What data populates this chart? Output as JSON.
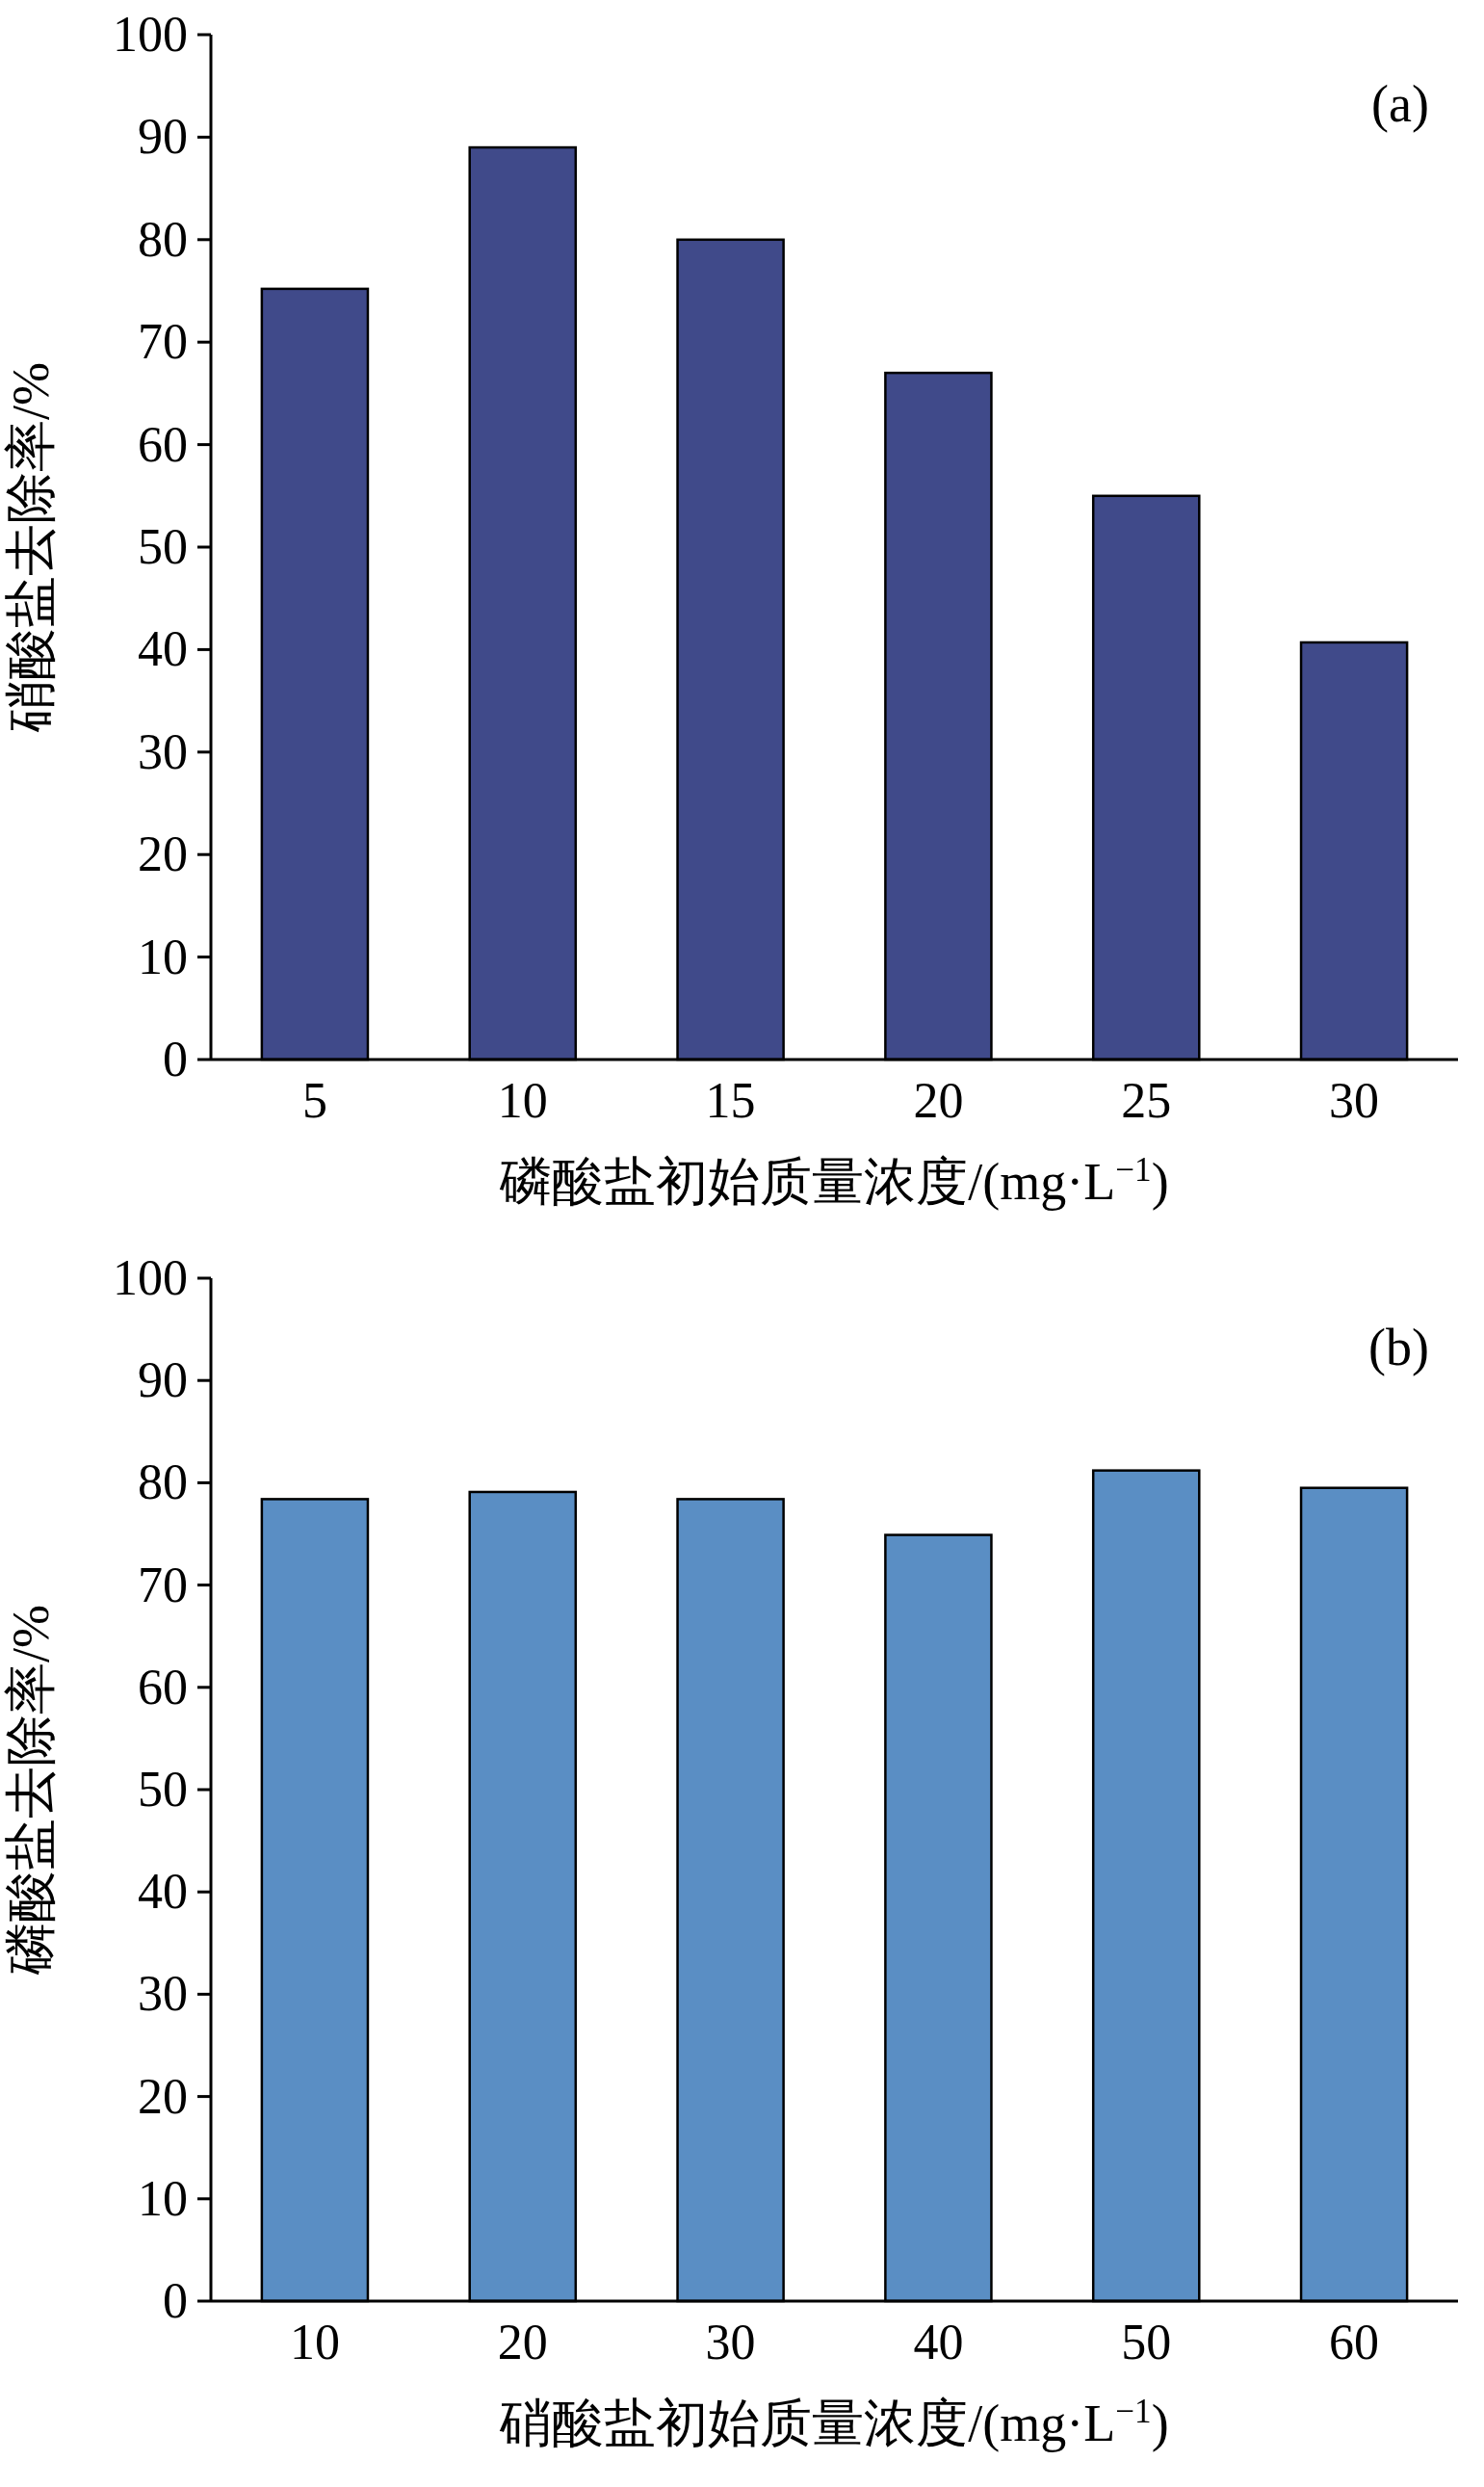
{
  "chart_data": [
    {
      "type": "bar",
      "categories": [
        "5",
        "10",
        "15",
        "20",
        "25",
        "30"
      ],
      "values": [
        75.2,
        89.0,
        80.0,
        67.0,
        55.0,
        40.7
      ],
      "color": "#404a8a",
      "ylim": [
        0,
        100
      ],
      "yticks": [
        0,
        10,
        20,
        30,
        40,
        50,
        60,
        70,
        80,
        90,
        100
      ],
      "xlabel": "磷酸盐初始质量浓度/(mg·L$^{−1}$)",
      "ylabel": "硝酸盐去除率/%",
      "annotations": [
        "(a)"
      ]
    },
    {
      "type": "bar",
      "categories": [
        "10",
        "20",
        "30",
        "40",
        "50",
        "60"
      ],
      "values": [
        78.4,
        79.1,
        78.4,
        74.9,
        81.2,
        79.5
      ],
      "color": "#5a8ec4",
      "ylim": [
        0,
        100
      ],
      "yticks": [
        0,
        10,
        20,
        30,
        40,
        50,
        60,
        70,
        80,
        90,
        100
      ],
      "xlabel": "硝酸盐初始质量浓度/(mg·L$^{−1}$)",
      "ylabel": "磷酸盐去除率/%",
      "annotations": [
        "(b)"
      ]
    }
  ]
}
